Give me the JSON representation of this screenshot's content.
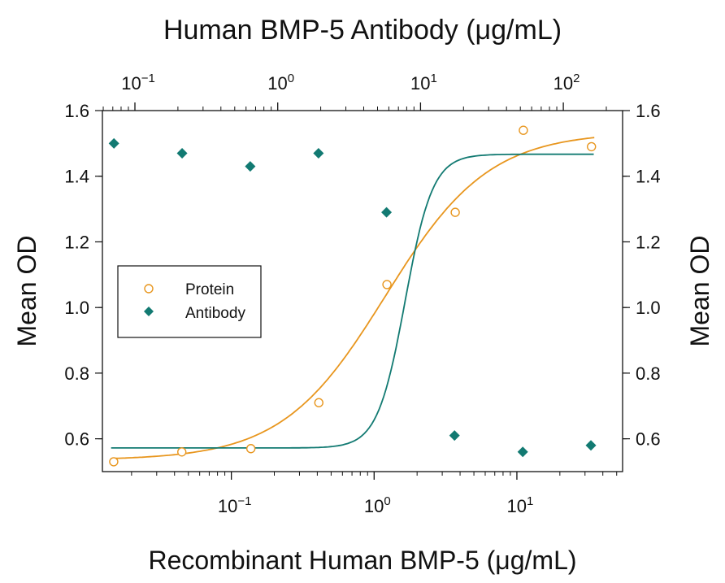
{
  "chart_data": {
    "type": "scatter",
    "title": "Human BMP-5 Antibody (μg/mL)",
    "xlabel": "Recombinant Human BMP-5 (μg/mL)",
    "ylabel": "Mean OD",
    "ylabel_right": "Mean OD",
    "x_scale": "log",
    "x_top_scale": "log",
    "xlim": [
      0.0125,
      55
    ],
    "x_top_lim": [
      0.0592,
      260
    ],
    "ylim": [
      0.5,
      1.6
    ],
    "y_ticks": [
      {
        "value": 0.6,
        "label": "0.6"
      },
      {
        "value": 0.8,
        "label": "0.8"
      },
      {
        "value": 1.0,
        "label": "1.0"
      },
      {
        "value": 1.2,
        "label": "1.2"
      },
      {
        "value": 1.4,
        "label": "1.4"
      },
      {
        "value": 1.6,
        "label": "1.6"
      }
    ],
    "x_ticks_bottom": [
      {
        "value": 0.1,
        "base": "10",
        "exp": "−1"
      },
      {
        "value": 1,
        "base": "10",
        "exp": "0"
      },
      {
        "value": 10,
        "base": "10",
        "exp": "1"
      }
    ],
    "x_ticks_top": [
      {
        "value": 0.1,
        "base": "10",
        "exp": "−1"
      },
      {
        "value": 1,
        "base": "10",
        "exp": "0"
      },
      {
        "value": 10,
        "base": "10",
        "exp": "1"
      },
      {
        "value": 100,
        "base": "10",
        "exp": "2"
      }
    ],
    "grid": false,
    "legend_position": "middle-left",
    "series": [
      {
        "name": "Protein",
        "axis": "bottom",
        "marker": "open-circle",
        "color": "#e8961e",
        "x": [
          0.015,
          0.045,
          0.137,
          0.41,
          1.23,
          3.7,
          11.1,
          33.3
        ],
        "y": [
          0.53,
          0.56,
          0.57,
          0.71,
          1.07,
          1.29,
          1.54,
          1.49
        ],
        "fit": {
          "bottom": 0.535,
          "top": 1.535,
          "ec50": 1.2,
          "hill": 1.2
        }
      },
      {
        "name": "Antibody",
        "axis": "top",
        "marker": "filled-diamond",
        "color": "#127a72",
        "x": [
          0.0713,
          0.214,
          0.642,
          1.93,
          5.78,
          17.3,
          52.0,
          156
        ],
        "y": [
          1.5,
          1.47,
          1.43,
          1.47,
          1.29,
          0.61,
          0.56,
          0.58
        ],
        "fit": {
          "bottom": 0.572,
          "top": 1.467,
          "ec50": 7.8,
          "hill": 4.5
        }
      }
    ]
  }
}
